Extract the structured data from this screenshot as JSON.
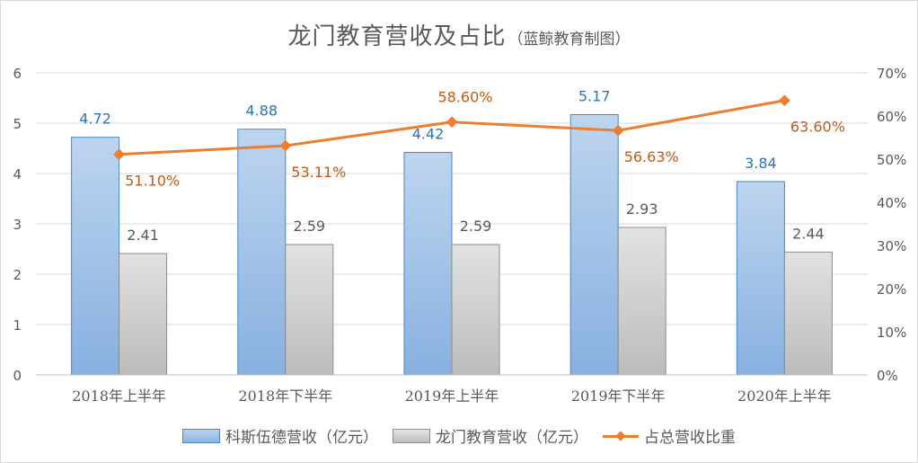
{
  "chart_data": {
    "type": "bar",
    "title": "龙门教育营收及占比",
    "subtitle": "（蓝鲸教育制图）",
    "categories": [
      "2018年上半年",
      "2018年下半年",
      "2019年上半年",
      "2019年下半年",
      "2020年上半年"
    ],
    "series": [
      {
        "name": "科斯伍德营收（亿元）",
        "type": "bar",
        "axis": "left",
        "color": "#8db4e3",
        "values": [
          4.72,
          4.88,
          4.42,
          5.17,
          3.84
        ],
        "labels": [
          "4.72",
          "4.88",
          "4.42",
          "5.17",
          "3.84"
        ]
      },
      {
        "name": "龙门教育营收（亿元）",
        "type": "bar",
        "axis": "left",
        "color": "#bfbfbf",
        "values": [
          2.41,
          2.59,
          2.59,
          2.93,
          2.44
        ],
        "labels": [
          "2.41",
          "2.59",
          "2.59",
          "2.93",
          "2.44"
        ]
      },
      {
        "name": "占总营收比重",
        "type": "line",
        "axis": "right",
        "color": "#ed7d31",
        "values": [
          51.1,
          53.11,
          58.6,
          56.63,
          63.6
        ],
        "labels": [
          "51.10%",
          "53.11%",
          "58.60%",
          "56.63%",
          "63.60%"
        ]
      }
    ],
    "y_left": {
      "range": [
        0,
        6
      ],
      "ticks": [
        "0",
        "1",
        "2",
        "3",
        "4",
        "5",
        "6"
      ]
    },
    "y_right": {
      "range": [
        0,
        70
      ],
      "ticks": [
        "0%",
        "10%",
        "20%",
        "30%",
        "40%",
        "50%",
        "60%",
        "70%"
      ]
    },
    "grid": true,
    "legend_position": "bottom"
  }
}
